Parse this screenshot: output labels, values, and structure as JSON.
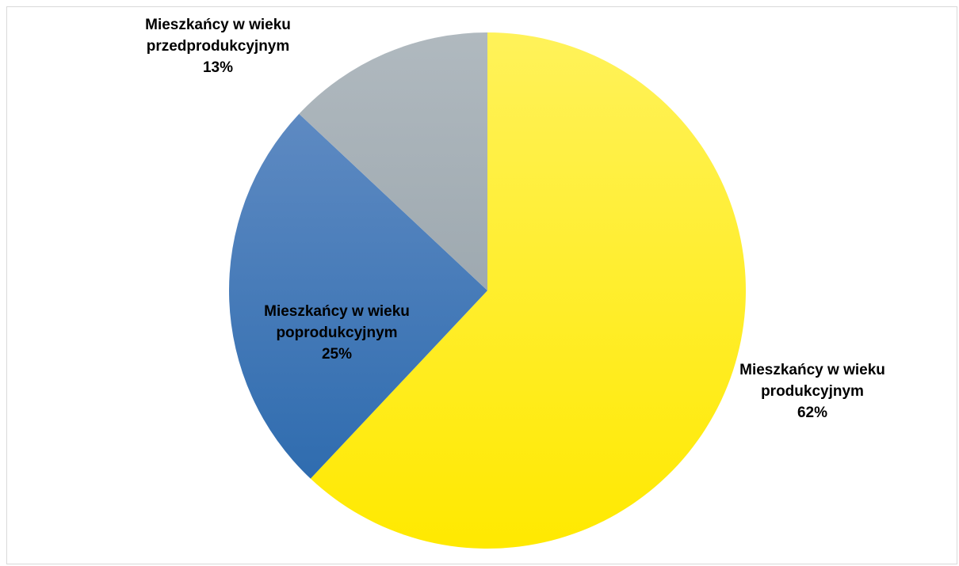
{
  "chart_data": {
    "type": "pie",
    "categories": [
      "Mieszkańcy w wieku produkcyjnym",
      "Mieszkańcy w wieku poprodukcyjnym",
      "Mieszkańcy w wieku przedprodukcyjnym"
    ],
    "values": [
      62,
      25,
      13
    ],
    "value_labels": [
      "62%",
      "25%",
      "13%"
    ],
    "colors": [
      "#fff046",
      "#4f7fbb",
      "#a6b1b8"
    ]
  }
}
